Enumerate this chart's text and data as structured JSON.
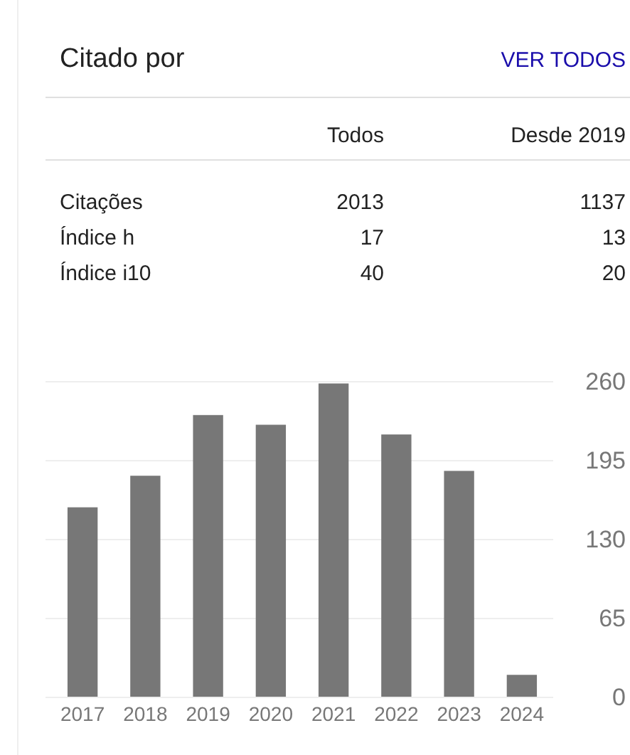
{
  "chart_data": [
    {
      "type": "other",
      "title": "Citado por",
      "annotations": [
        "VER TODOS",
        "Todos",
        "Desde 2019",
        "Citações",
        "2013",
        "1137",
        "Índice h",
        "17",
        "13",
        "Índice i10",
        "40",
        "20"
      ]
    },
    {
      "type": "bar",
      "categories": [
        "2017",
        "2018",
        "2019",
        "2020",
        "2021",
        "2022",
        "2023",
        "2024"
      ],
      "values": [
        156,
        182,
        232,
        224,
        258,
        216,
        186,
        18
      ],
      "color": "#777777",
      "ylim": [
        0,
        260
      ],
      "yticks": [
        0,
        65,
        130,
        195,
        260
      ],
      "grid": "y"
    }
  ]
}
